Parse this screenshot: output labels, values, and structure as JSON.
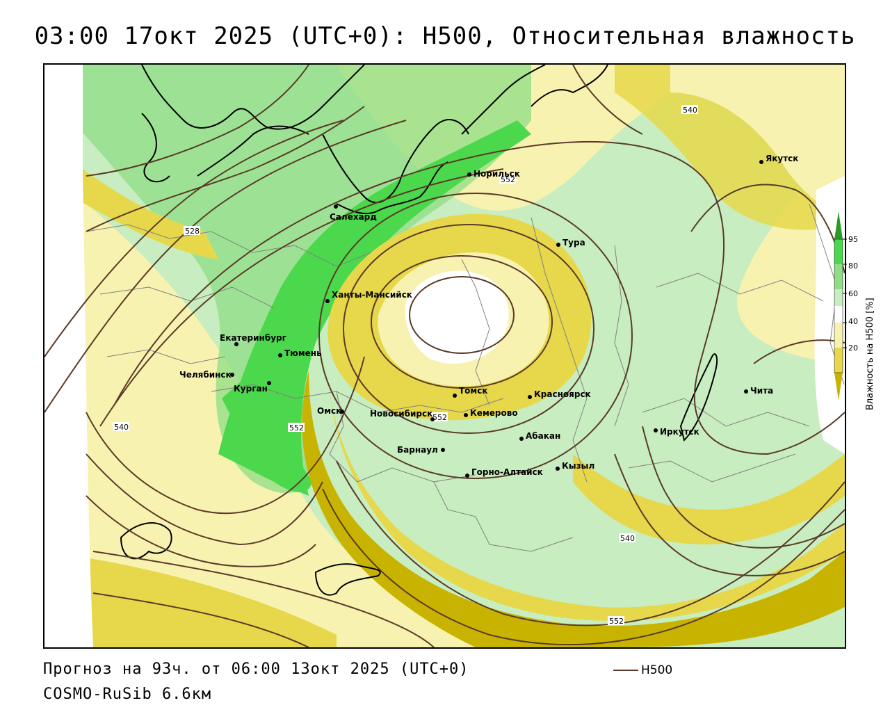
{
  "title": "03:00 17окт 2025 (UTC+0): H500, Относительная влажность",
  "footer": {
    "forecast": "Прогноз на 93ч. от 06:00 13окт 2025 (UTC+0)",
    "model": "COSMO-RuSib 6.6км",
    "h500_legend": "H500"
  },
  "legend": {
    "title": "Влажность на H500 [%]",
    "ticks": [
      "95",
      "80",
      "60",
      "40",
      "20"
    ],
    "colors": {
      "very_dry": "#c8b400",
      "dry": "#e6d84a",
      "light_dry": "#f8f2b0",
      "neutral": "#ffffff",
      "light_moist": "#c8edc0",
      "moist": "#8fde86",
      "wet": "#4cd84c",
      "very_wet": "#2a9a2a"
    }
  },
  "colors": {
    "contour": "#5a3a28",
    "coast": "#000000",
    "border": "#808080"
  },
  "cities": [
    {
      "name": "Якутск"
    },
    {
      "name": "Норильск"
    },
    {
      "name": "Салехард"
    },
    {
      "name": "Тура"
    },
    {
      "name": "Ханты-Мансийск"
    },
    {
      "name": "Екатеринбург"
    },
    {
      "name": "Тюмень"
    },
    {
      "name": "Челябинск"
    },
    {
      "name": "Курган"
    },
    {
      "name": "Омск"
    },
    {
      "name": "Новосибирск"
    },
    {
      "name": "Томск"
    },
    {
      "name": "Кемерово"
    },
    {
      "name": "Красноярск"
    },
    {
      "name": "Барнаул"
    },
    {
      "name": "Абакан"
    },
    {
      "name": "Иркутск"
    },
    {
      "name": "Чита"
    },
    {
      "name": "Кызыл"
    },
    {
      "name": "Горно-Алтайск"
    }
  ],
  "contour_labels": [
    "540",
    "552",
    "528",
    "540",
    "552",
    "540",
    "552",
    "552"
  ]
}
